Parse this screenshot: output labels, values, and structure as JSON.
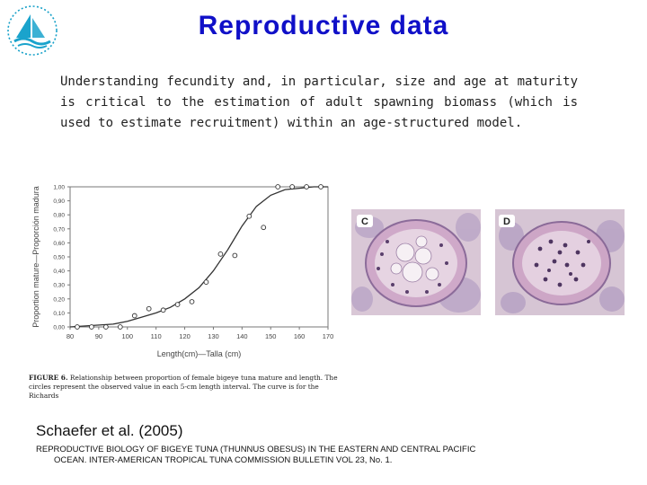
{
  "slide": {
    "title": "Reproductive data",
    "body": "Understanding fecundity and, in particular, size and age at maturity is critical to the estimation of adult spawning biomass (which is used to estimate recruitment) within an age-structured model.",
    "reference": "Schaefer et al. (2005)",
    "citation_line1": "REPRODUCTIVE BIOLOGY OF BIGEYE TUNA (THUNNUS OBESUS) IN THE EASTERN AND CENTRAL PACIFIC",
    "citation_line2": "OCEAN. INTER-AMERICAN TROPICAL TUNA COMMISSION BULLETIN VOL 23, No. 1."
  },
  "figure": {
    "caption_label": "FIGURE 6.",
    "caption_text": "Relationship between proportion of female bigeye tuna mature and length.  The circles represent the observed value in each 5-cm length interval.  The curve is for the Richards"
  },
  "micrographs": [
    {
      "label": "C"
    },
    {
      "label": "D"
    }
  ],
  "chart_data": {
    "type": "scatter",
    "xlabel": "Length(cm)—Talla (cm)",
    "ylabel": "Proportion mature—Proporción madura",
    "xlim": [
      80,
      170
    ],
    "ylim": [
      0,
      1
    ],
    "x_ticks": [
      "80",
      "90",
      "100",
      "110",
      "120",
      "130",
      "140",
      "150",
      "160",
      "170"
    ],
    "y_ticks": [
      "0,00",
      "0,10",
      "0,20",
      "0,30",
      "0,40",
      "0,50",
      "0,60",
      "0,70",
      "0,80",
      "0,90",
      "1,00"
    ],
    "points": {
      "x": [
        82.5,
        87.5,
        92.5,
        97.5,
        102.5,
        107.5,
        112.5,
        117.5,
        122.5,
        127.5,
        132.5,
        137.5,
        142.5,
        147.5,
        152.5,
        157.5,
        162.5,
        167.5
      ],
      "y": [
        0.0,
        0.0,
        0.0,
        0.0,
        0.08,
        0.13,
        0.12,
        0.16,
        0.18,
        0.32,
        0.52,
        0.51,
        0.79,
        0.71,
        1.0,
        1.0,
        1.0,
        1.0
      ]
    },
    "curve": {
      "x": [
        80,
        95,
        100,
        105,
        110,
        115,
        120,
        125,
        130,
        135,
        140,
        145,
        150,
        155,
        160,
        165,
        170
      ],
      "y": [
        0.0,
        0.02,
        0.04,
        0.07,
        0.1,
        0.14,
        0.2,
        0.28,
        0.4,
        0.55,
        0.72,
        0.86,
        0.94,
        0.98,
        0.99,
        1.0,
        1.0
      ]
    },
    "grid": false
  }
}
